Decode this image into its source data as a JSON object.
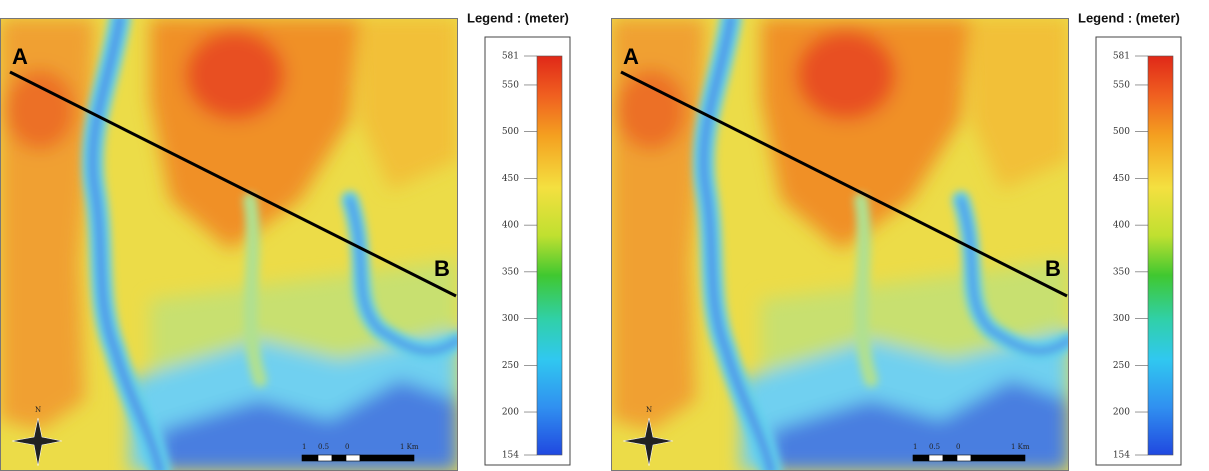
{
  "panels": [
    {
      "legend_title": "Legend : (meter)",
      "legend_ticks": [
        581,
        550,
        500,
        450,
        400,
        350,
        300,
        250,
        200,
        154
      ],
      "point_a": "A",
      "point_b": "B",
      "north": "N",
      "scale_labels": [
        "1",
        "0.5",
        "0",
        "1 Km"
      ]
    },
    {
      "legend_title": "Legend : (meter)",
      "legend_ticks": [
        581,
        550,
        500,
        450,
        400,
        350,
        300,
        250,
        200,
        154
      ],
      "point_a": "A",
      "point_b": "B",
      "north": "N",
      "scale_labels": [
        "1",
        "0.5",
        "0",
        "1 Km"
      ]
    }
  ]
}
